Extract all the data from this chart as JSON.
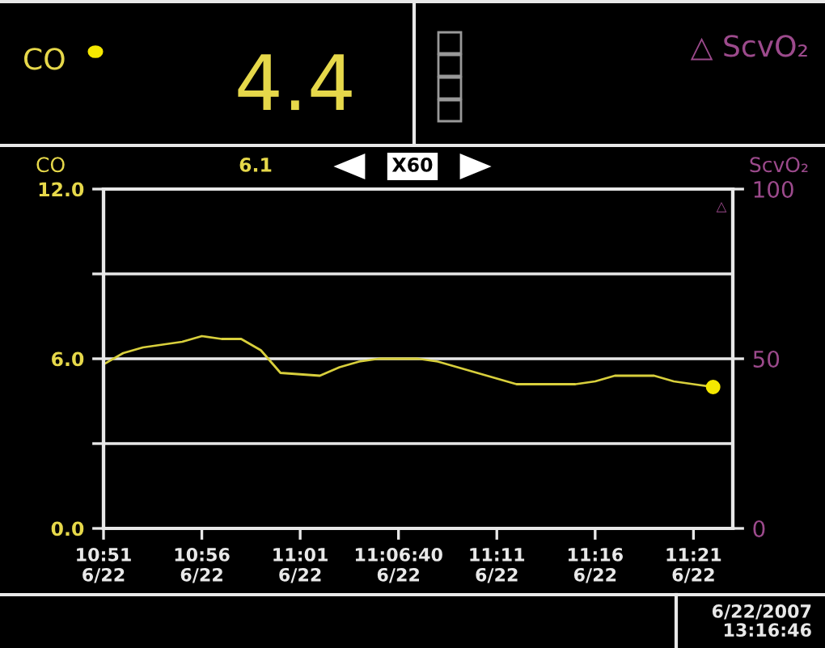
{
  "chart_data": {
    "type": "line",
    "ylabel": "CO",
    "y2label": "ScvO₂",
    "annotations": [
      "CO",
      "4.4",
      "△ ScvO₂",
      "6.1",
      "X60",
      "△",
      "6/22/2007\n13:16:46"
    ],
    "xlim": [
      "2007-06-22T10:51",
      "2007-06-22T11:23"
    ],
    "xticks": [
      {
        "value": "2007-06-22T10:51",
        "label": "10:51\n6/22"
      },
      {
        "value": "2007-06-22T10:56",
        "label": "10:56\n6/22"
      },
      {
        "value": "2007-06-22T11:01",
        "label": "11:01\n6/22"
      },
      {
        "value": "2007-06-22T11:06",
        "label": "11:06:40\n6/22"
      },
      {
        "value": "2007-06-22T11:11",
        "label": "11:11\n6/22"
      },
      {
        "value": "2007-06-22T11:16",
        "label": "11:16\n6/22"
      },
      {
        "value": "2007-06-22T11:21",
        "label": "11:21\n6/22"
      }
    ],
    "ylim": [
      0,
      12
    ],
    "yticks": [
      {
        "value": 0,
        "label": "0.0"
      },
      {
        "value": 3,
        "label": null
      },
      {
        "value": 6,
        "label": "6.0"
      },
      {
        "value": 9,
        "label": null
      },
      {
        "value": 12,
        "label": "12.0"
      }
    ],
    "y2lim": [
      0,
      100
    ],
    "y2ticks": [
      0,
      50,
      100
    ],
    "grid": "y",
    "series": [
      {
        "type": "line",
        "color": "#d8cf3c",
        "x": [
          "2007-06-22T10:51",
          "2007-06-22T10:52",
          "2007-06-22T10:53",
          "2007-06-22T10:54",
          "2007-06-22T10:55",
          "2007-06-22T10:56",
          "2007-06-22T10:57",
          "2007-06-22T10:58",
          "2007-06-22T10:59",
          "2007-06-22T11:00",
          "2007-06-22T11:02",
          "2007-06-22T11:03",
          "2007-06-22T11:04",
          "2007-06-22T11:05",
          "2007-06-22T11:07",
          "2007-06-22T11:08",
          "2007-06-22T11:09",
          "2007-06-22T11:10",
          "2007-06-22T11:11",
          "2007-06-22T11:12",
          "2007-06-22T11:15",
          "2007-06-22T11:16",
          "2007-06-22T11:17",
          "2007-06-22T11:19",
          "2007-06-22T11:20",
          "2007-06-22T11:21",
          "2007-06-22T11:22"
        ],
        "values": [
          5.8,
          6.2,
          6.4,
          6.5,
          6.6,
          6.8,
          6.7,
          6.7,
          6.3,
          5.5,
          5.4,
          5.7,
          5.9,
          6.0,
          6.0,
          5.9,
          5.7,
          5.5,
          5.3,
          5.1,
          5.1,
          5.2,
          5.4,
          5.4,
          5.2,
          5.1,
          5.0
        ]
      },
      {
        "type": "scatter",
        "color": "#f5e800",
        "marker": "circle",
        "x": [
          "2007-06-22T11:22"
        ],
        "values": [
          5.0
        ]
      }
    ]
  }
}
